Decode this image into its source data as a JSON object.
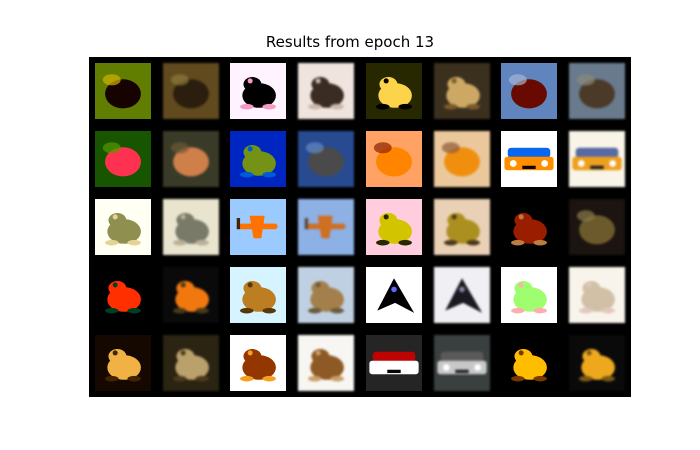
{
  "figure": {
    "title": "Results from epoch 13",
    "layout": "grid of image pairs (original, reconstruction)",
    "rows": 5,
    "cols": 8,
    "background": "#000000"
  },
  "cells": [
    {
      "subject": "dark creature on olive foliage",
      "kind": "original",
      "bg": "#6b7a2a",
      "fg": "#2a2010",
      "accent": "#b7a54a",
      "shape": "blob"
    },
    {
      "subject": "dark creature on olive foliage",
      "kind": "reconstruction",
      "bg": "#5e4a22",
      "fg": "#2a1e10",
      "accent": "#8a7a40",
      "shape": "blob"
    },
    {
      "subject": "dark frog on pink background",
      "kind": "original",
      "bg": "#f2dbe4",
      "fg": "#1c1a1a",
      "accent": "#c99ab0",
      "shape": "frog"
    },
    {
      "subject": "dark frog on pink background",
      "kind": "reconstruction",
      "bg": "#efe4e0",
      "fg": "#3a2c24",
      "accent": "#c9b8aa",
      "shape": "frog"
    },
    {
      "subject": "tan frog facing right",
      "kind": "original",
      "bg": "#3a3a1c",
      "fg": "#d4c07a",
      "accent": "#1c1c10",
      "shape": "frog"
    },
    {
      "subject": "tan frog facing right",
      "kind": "reconstruction",
      "bg": "#3a3020",
      "fg": "#c9a86a",
      "accent": "#7a5a30",
      "shape": "frog"
    },
    {
      "subject": "brown creature on blue-grey",
      "kind": "original",
      "bg": "#6f82a0",
      "fg": "#5a2a1a",
      "accent": "#a0a8b8",
      "shape": "blob"
    },
    {
      "subject": "brown creature on blue-grey",
      "kind": "reconstruction",
      "bg": "#6a7a8a",
      "fg": "#4a3a2a",
      "accent": "#8a8a7a",
      "shape": "blob"
    },
    {
      "subject": "red creature on green",
      "kind": "original",
      "bg": "#3a5a2a",
      "fg": "#c25060",
      "accent": "#6a8a3a",
      "shape": "blob"
    },
    {
      "subject": "red creature on green",
      "kind": "reconstruction",
      "bg": "#3a3a2a",
      "fg": "#c88050",
      "accent": "#6a5a3a",
      "shape": "blob"
    },
    {
      "subject": "green frog on blue",
      "kind": "original",
      "bg": "#1a3a8a",
      "fg": "#7a8a4a",
      "accent": "#2a60a0",
      "shape": "frog"
    },
    {
      "subject": "green frog on blue",
      "kind": "reconstruction",
      "bg": "#2a4a8a",
      "fg": "#4a4a4a",
      "accent": "#6a8aba",
      "shape": "blob"
    },
    {
      "subject": "orange creature on pink",
      "kind": "original",
      "bg": "#e0a080",
      "fg": "#e88a1a",
      "accent": "#6a3a2a",
      "shape": "blob"
    },
    {
      "subject": "orange creature on pink",
      "kind": "reconstruction",
      "bg": "#e8c8a0",
      "fg": "#e8901a",
      "accent": "#8a5a3a",
      "shape": "blob"
    },
    {
      "subject": "orange car front",
      "kind": "original",
      "bg": "#f8f8f8",
      "fg": "#e8902a",
      "accent": "#3a6ab0",
      "shape": "car"
    },
    {
      "subject": "orange car front",
      "kind": "reconstruction",
      "bg": "#f8f4e8",
      "fg": "#e8a02a",
      "accent": "#5a6aa0",
      "shape": "car"
    },
    {
      "subject": "grey frog",
      "kind": "original",
      "bg": "#f0f0e0",
      "fg": "#8a8a6a",
      "accent": "#c8c0a0",
      "shape": "frog"
    },
    {
      "subject": "grey frog",
      "kind": "reconstruction",
      "bg": "#e8e4d0",
      "fg": "#7a7a6a",
      "accent": "#b8b098",
      "shape": "frog"
    },
    {
      "subject": "airplane in blue sky",
      "kind": "original",
      "bg": "#a0b8e8",
      "fg": "#c87a1a",
      "accent": "#4a3a2a",
      "shape": "plane"
    },
    {
      "subject": "airplane in blue sky",
      "kind": "reconstruction",
      "bg": "#90b0e0",
      "fg": "#c8702a",
      "accent": "#5a4a3a",
      "shape": "plane"
    },
    {
      "subject": "spotted yellow-green frog",
      "kind": "original",
      "bg": "#e8c0c8",
      "fg": "#b8b02a",
      "accent": "#3a3a1a",
      "shape": "frog"
    },
    {
      "subject": "spotted yellow-green frog",
      "kind": "reconstruction",
      "bg": "#e8d0b8",
      "fg": "#a8902a",
      "accent": "#4a3a1a",
      "shape": "frog"
    },
    {
      "subject": "brown frog on dark",
      "kind": "original",
      "bg": "#1a1410",
      "fg": "#7a3a2a",
      "accent": "#a08060",
      "shape": "frog"
    },
    {
      "subject": "brown frog on dark",
      "kind": "reconstruction",
      "bg": "#1a1410",
      "fg": "#6a5a30",
      "accent": "#8a7a50",
      "shape": "blob"
    },
    {
      "subject": "orange-red frog on dark",
      "kind": "original",
      "bg": "#0a0a0a",
      "fg": "#e8501a",
      "accent": "#2a4a3a",
      "shape": "frog"
    },
    {
      "subject": "orange-red frog on dark",
      "kind": "reconstruction",
      "bg": "#0a0a0a",
      "fg": "#e87a1a",
      "accent": "#4a3a1a",
      "shape": "frog"
    },
    {
      "subject": "toad on light blue",
      "kind": "original",
      "bg": "#c8d8e8",
      "fg": "#a08050",
      "accent": "#5a4a30",
      "shape": "frog"
    },
    {
      "subject": "toad on light blue",
      "kind": "reconstruction",
      "bg": "#c0d0e0",
      "fg": "#a08050",
      "accent": "#6a5a40",
      "shape": "frog"
    },
    {
      "subject": "black stealth jet",
      "kind": "original",
      "bg": "#f0f0f8",
      "fg": "#101018",
      "accent": "#6a70c0",
      "shape": "jet"
    },
    {
      "subject": "black stealth jet",
      "kind": "reconstruction",
      "bg": "#f0f0f4",
      "fg": "#1a1a20",
      "accent": "#8a80a0",
      "shape": "jet"
    },
    {
      "subject": "pale green frogs on white",
      "kind": "original",
      "bg": "#f8f8f0",
      "fg": "#a8d890",
      "accent": "#d8a8a8",
      "shape": "frog"
    },
    {
      "subject": "pale green frogs on white",
      "kind": "reconstruction",
      "bg": "#f8f4ec",
      "fg": "#d0c0a8",
      "accent": "#e0c8c0",
      "shape": "frog"
    },
    {
      "subject": "frog on sand",
      "kind": "original",
      "bg": "#2a2414",
      "fg": "#c8a870",
      "accent": "#4a3a20",
      "shape": "frog"
    },
    {
      "subject": "frog on sand",
      "kind": "reconstruction",
      "bg": "#2a2414",
      "fg": "#b8a070",
      "accent": "#4a3a20",
      "shape": "frog"
    },
    {
      "subject": "brown frog on white",
      "kind": "original",
      "bg": "#f8f8f8",
      "fg": "#7a4a1a",
      "accent": "#c89a5a",
      "shape": "frog"
    },
    {
      "subject": "brown frog on white",
      "kind": "reconstruction",
      "bg": "#f8f6f2",
      "fg": "#8a5a2a",
      "accent": "#c8a070",
      "shape": "frog"
    },
    {
      "subject": "truck front",
      "kind": "original",
      "bg": "#3a3a3a",
      "fg": "#e8e8e8",
      "accent": "#8a2a2a",
      "shape": "car"
    },
    {
      "subject": "truck front",
      "kind": "reconstruction",
      "bg": "#3a4040",
      "fg": "#c8c8c8",
      "accent": "#5a5a5a",
      "shape": "car"
    },
    {
      "subject": "yellow toad on black",
      "kind": "original",
      "bg": "#0a0a0a",
      "fg": "#f0b01a",
      "accent": "#6a4a0a",
      "shape": "frog"
    },
    {
      "subject": "yellow toad on black",
      "kind": "reconstruction",
      "bg": "#0a0a0a",
      "fg": "#e8a82a",
      "accent": "#7a5a1a",
      "shape": "frog"
    }
  ]
}
